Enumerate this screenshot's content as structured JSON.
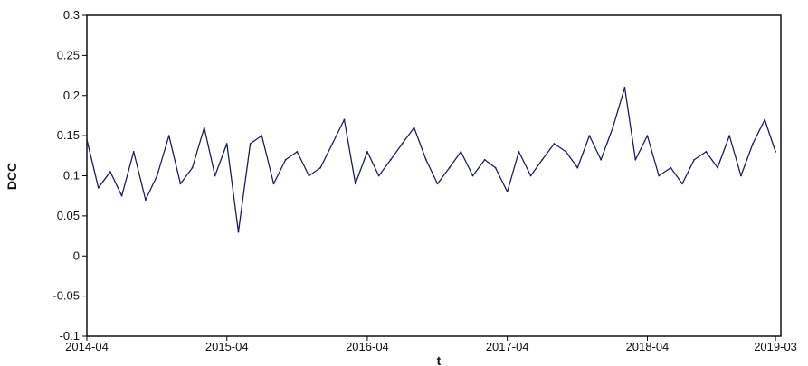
{
  "chart_data": {
    "type": "line",
    "title": "",
    "xlabel": "t",
    "ylabel": "DCC",
    "xlim": [
      "2014-04-01",
      "2019-03-15"
    ],
    "ylim": [
      -0.1,
      0.3
    ],
    "x_ticks": [
      "2014-04",
      "2015-04",
      "2016-04",
      "2017-04",
      "2018-04",
      "2019-03"
    ],
    "y_ticks": [
      "-0.1",
      "-0.05",
      "0",
      "0.05",
      "0.1",
      "0.15",
      "0.2",
      "0.25",
      "0.3"
    ],
    "grid": false,
    "colors": {
      "line": "#1a1f5c",
      "frame": "#000000"
    },
    "series": [
      {
        "x": [
          "2014-04-01",
          "2014-05-01",
          "2014-06-01",
          "2014-07-01",
          "2014-08-01",
          "2014-09-01",
          "2014-10-01",
          "2014-11-01",
          "2014-12-01",
          "2015-01-01",
          "2015-02-01",
          "2015-03-01",
          "2015-04-01",
          "2015-05-01",
          "2015-06-01",
          "2015-07-01",
          "2015-08-01",
          "2015-09-01",
          "2015-10-01",
          "2015-11-01",
          "2015-12-01",
          "2016-01-01",
          "2016-02-01",
          "2016-03-01",
          "2016-04-01",
          "2016-05-01",
          "2016-06-01",
          "2016-07-01",
          "2016-08-01",
          "2016-09-01",
          "2016-10-01",
          "2016-11-01",
          "2016-12-01",
          "2017-01-01",
          "2017-02-01",
          "2017-03-01",
          "2017-04-01",
          "2017-05-01",
          "2017-06-01",
          "2017-07-01",
          "2017-08-01",
          "2017-09-01",
          "2017-10-01",
          "2017-11-01",
          "2017-12-01",
          "2018-01-01",
          "2018-02-01",
          "2018-03-01",
          "2018-04-01",
          "2018-05-01",
          "2018-06-01",
          "2018-07-01",
          "2018-08-01",
          "2018-09-01",
          "2018-10-01",
          "2018-11-01",
          "2018-12-01",
          "2019-01-01",
          "2019-02-01",
          "2019-03-01"
        ],
        "values": [
          0.145,
          0.085,
          0.105,
          0.075,
          0.13,
          0.07,
          0.1,
          0.15,
          0.09,
          0.11,
          0.16,
          0.1,
          0.14,
          0.03,
          0.14,
          0.15,
          0.09,
          0.12,
          0.13,
          0.1,
          0.11,
          0.14,
          0.17,
          0.09,
          0.13,
          0.1,
          0.12,
          0.14,
          0.16,
          0.12,
          0.09,
          0.11,
          0.13,
          0.1,
          0.12,
          0.11,
          0.08,
          0.13,
          0.1,
          0.12,
          0.14,
          0.13,
          0.11,
          0.15,
          0.12,
          0.16,
          0.21,
          0.12,
          0.15,
          0.1,
          0.11,
          0.09,
          0.12,
          0.13,
          0.11,
          0.15,
          0.1,
          0.14,
          0.17,
          0.13
        ]
      }
    ]
  }
}
